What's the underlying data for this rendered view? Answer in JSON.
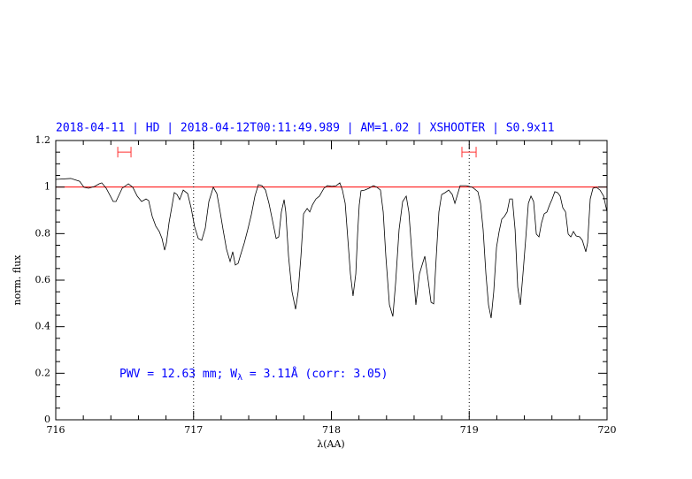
{
  "chart_data": {
    "type": "line",
    "title": "2018-04-11 | HD | 2018-04-12T00:11:49.989 | AM=1.02 | XSHOOTER | S0.9x11",
    "xlabel": "λ(AA)",
    "ylabel": "norm. flux",
    "annotation": [
      "PWV = 12.63 mm; W",
      "λ",
      " = 3.11Å (corr: 3.05)"
    ],
    "xlim": [
      716,
      720
    ],
    "ylim": [
      0,
      1.2
    ],
    "xticks": [
      716,
      717,
      718,
      719,
      720
    ],
    "yticks": [
      0,
      0.2,
      0.4,
      0.6,
      0.8,
      1,
      1.2
    ],
    "xminorticks": [
      716.2,
      716.4,
      716.6,
      716.8,
      717.2,
      717.4,
      717.6,
      717.8,
      718.2,
      718.4,
      718.6,
      718.8,
      719.2,
      719.4,
      719.6,
      719.8
    ],
    "yminorticks": [
      0.05,
      0.1,
      0.15,
      0.25,
      0.3,
      0.35,
      0.45,
      0.5,
      0.55,
      0.65,
      0.7,
      0.75,
      0.85,
      0.9,
      0.95,
      1.05,
      1.1,
      1.15
    ],
    "hlines": [
      1
    ],
    "hline_color": "#ff0000",
    "vlines": [
      717,
      719
    ],
    "windows": [
      [
        716.45,
        716.546
      ],
      [
        718.947,
        719.05
      ]
    ],
    "window_y": 1.15,
    "window_color": "#ff3030",
    "color": "#000000",
    "x": [
      716.0,
      716.109,
      716.173,
      716.205,
      716.238,
      716.283,
      716.315,
      716.334,
      716.366,
      716.417,
      716.437,
      716.482,
      716.527,
      716.559,
      716.591,
      716.623,
      716.655,
      716.674,
      716.7,
      716.726,
      716.751,
      716.771,
      716.79,
      716.803,
      716.822,
      716.841,
      716.86,
      716.88,
      716.899,
      716.925,
      716.957,
      716.982,
      717.008,
      717.034,
      717.059,
      717.085,
      717.111,
      717.143,
      717.169,
      717.194,
      717.214,
      717.239,
      717.265,
      717.284,
      717.303,
      717.323,
      717.342,
      717.368,
      717.393,
      717.419,
      717.445,
      717.47,
      717.496,
      717.522,
      717.547,
      717.573,
      717.599,
      717.618,
      717.637,
      717.657,
      717.669,
      717.689,
      717.714,
      717.74,
      717.759,
      717.779,
      717.798,
      717.824,
      717.843,
      717.862,
      717.888,
      717.913,
      717.946,
      717.971,
      718.003,
      718.035,
      718.061,
      718.08,
      718.1,
      718.119,
      718.138,
      718.157,
      718.177,
      718.19,
      718.202,
      718.215,
      718.241,
      718.273,
      718.305,
      718.331,
      718.356,
      718.376,
      718.395,
      718.421,
      718.446,
      718.466,
      718.491,
      718.517,
      718.543,
      718.562,
      718.588,
      718.613,
      718.639,
      718.658,
      718.678,
      718.703,
      718.723,
      718.742,
      718.761,
      718.78,
      718.8,
      718.825,
      718.851,
      718.877,
      718.896,
      718.915,
      718.934,
      718.979,
      719.024,
      719.063,
      719.082,
      719.101,
      719.121,
      719.14,
      719.159,
      719.178,
      719.198,
      719.217,
      719.236,
      719.255,
      719.275,
      719.294,
      719.313,
      719.333,
      719.352,
      719.371,
      719.39,
      719.41,
      719.429,
      719.448,
      719.467,
      719.487,
      719.506,
      719.525,
      719.544,
      719.564,
      719.583,
      719.602,
      719.621,
      719.641,
      719.66,
      719.679,
      719.699,
      719.718,
      719.737,
      719.756,
      719.776,
      719.801,
      719.821,
      719.846,
      719.859,
      719.878,
      719.898,
      719.923,
      719.949,
      719.975,
      720.0
    ],
    "values": [
      1.033,
      1.037,
      1.025,
      0.999,
      0.995,
      1.003,
      1.014,
      1.018,
      0.995,
      0.938,
      0.938,
      0.995,
      1.014,
      0.999,
      0.961,
      0.938,
      0.949,
      0.942,
      0.874,
      0.832,
      0.809,
      0.779,
      0.729,
      0.76,
      0.847,
      0.911,
      0.976,
      0.968,
      0.946,
      0.987,
      0.972,
      0.911,
      0.828,
      0.779,
      0.771,
      0.824,
      0.938,
      0.999,
      0.972,
      0.889,
      0.817,
      0.733,
      0.68,
      0.722,
      0.665,
      0.672,
      0.71,
      0.76,
      0.817,
      0.881,
      0.961,
      1.01,
      1.006,
      0.987,
      0.93,
      0.855,
      0.779,
      0.786,
      0.893,
      0.946,
      0.893,
      0.703,
      0.551,
      0.475,
      0.551,
      0.703,
      0.885,
      0.908,
      0.893,
      0.923,
      0.949,
      0.961,
      0.995,
      1.006,
      1.003,
      1.006,
      1.018,
      0.987,
      0.93,
      0.779,
      0.627,
      0.532,
      0.627,
      0.798,
      0.923,
      0.984,
      0.987,
      0.995,
      1.006,
      0.999,
      0.987,
      0.893,
      0.703,
      0.494,
      0.444,
      0.589,
      0.817,
      0.938,
      0.961,
      0.893,
      0.684,
      0.494,
      0.627,
      0.665,
      0.703,
      0.596,
      0.505,
      0.498,
      0.703,
      0.893,
      0.968,
      0.976,
      0.987,
      0.968,
      0.93,
      0.968,
      1.006,
      1.006,
      0.999,
      0.98,
      0.93,
      0.817,
      0.627,
      0.494,
      0.437,
      0.551,
      0.741,
      0.809,
      0.862,
      0.874,
      0.893,
      0.949,
      0.949,
      0.817,
      0.57,
      0.494,
      0.627,
      0.779,
      0.93,
      0.961,
      0.938,
      0.798,
      0.786,
      0.847,
      0.885,
      0.893,
      0.923,
      0.949,
      0.98,
      0.976,
      0.961,
      0.911,
      0.893,
      0.798,
      0.786,
      0.809,
      0.79,
      0.786,
      0.771,
      0.722,
      0.76,
      0.949,
      0.995,
      0.999,
      0.987,
      0.961,
      0.893
    ]
  }
}
